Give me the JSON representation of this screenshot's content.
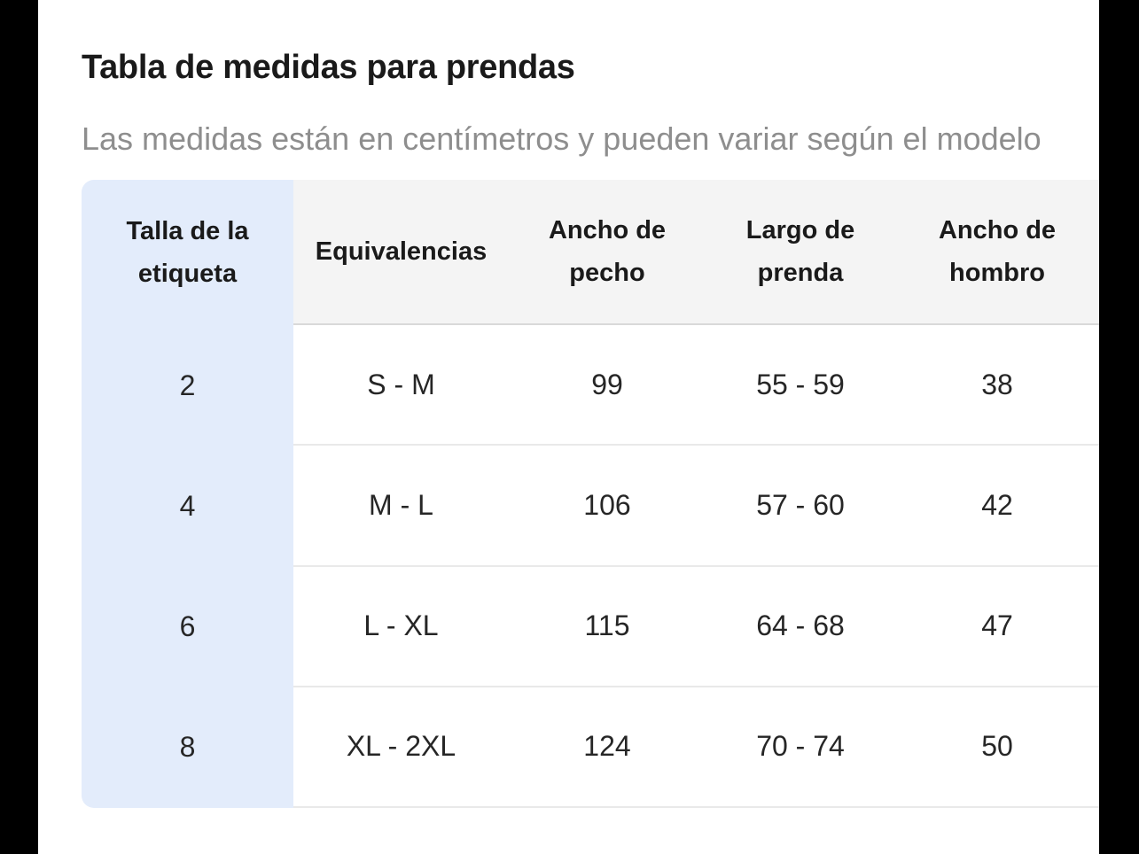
{
  "window": {
    "title": "Tabla de medidas para prendas",
    "subtitle": "Las medidas están en centímetros y pueden variar según el modelo"
  },
  "table": {
    "label_column": {
      "header_lines": [
        "Talla de la",
        "etiqueta"
      ]
    },
    "columns": [
      {
        "label": "Equivalencias",
        "line1": "Equivalencias"
      },
      {
        "label": "Ancho de pecho",
        "line1": "Ancho de",
        "line2": "pecho"
      },
      {
        "label": "Largo de prenda",
        "line1": "Largo de",
        "line2": "prenda"
      },
      {
        "label": "Ancho de hombro",
        "line1": "Ancho de",
        "line2": "hombro"
      }
    ],
    "rows": [
      {
        "size": "2",
        "values": [
          "S - M",
          "99",
          "55 - 59",
          "38"
        ]
      },
      {
        "size": "4",
        "values": [
          "M - L",
          "106",
          "57 - 60",
          "42"
        ]
      },
      {
        "size": "6",
        "values": [
          "L - XL",
          "115",
          "64 - 68",
          "47"
        ]
      },
      {
        "size": "8",
        "values": [
          "XL - 2XL",
          "124",
          "70 - 74",
          "50"
        ]
      }
    ]
  },
  "colors": {
    "label_column_bg": "#e3ecfb",
    "header_bg": "#f4f4f4",
    "header_divider": "#d9d9d9",
    "row_divider": "#e9e9e9",
    "title_text": "#1a1a1a",
    "subtitle_text": "#8e8e8e",
    "cell_text": "#262626",
    "letterbox": "#000000",
    "page_bg": "#ffffff"
  }
}
